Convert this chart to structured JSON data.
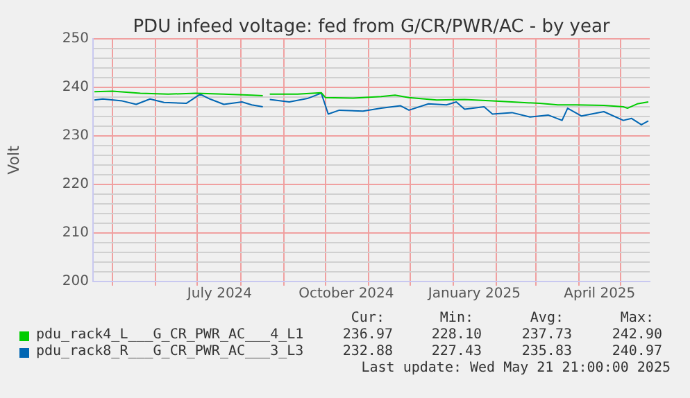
{
  "chart_data": {
    "type": "line",
    "title": "PDU infeed voltage: fed from G/CR/PWR/AC - by year",
    "ylabel": "Volt",
    "xlim": [
      "2024-04-17",
      "2025-05-22"
    ],
    "ylim": [
      200,
      250
    ],
    "xticks": [
      {
        "value": "2024-05-01",
        "label": null
      },
      {
        "value": "2024-06-01",
        "label": null
      },
      {
        "value": "2024-07-01",
        "label": null
      },
      {
        "value": "2024-07-17",
        "label": "July 2024"
      },
      {
        "value": "2024-08-01",
        "label": null
      },
      {
        "value": "2024-09-01",
        "label": null
      },
      {
        "value": "2024-10-01",
        "label": null
      },
      {
        "value": "2024-10-16",
        "label": "October 2024"
      },
      {
        "value": "2024-11-01",
        "label": null
      },
      {
        "value": "2024-12-01",
        "label": null
      },
      {
        "value": "2025-01-01",
        "label": null
      },
      {
        "value": "2025-01-16",
        "label": "January 2025"
      },
      {
        "value": "2025-02-01",
        "label": null
      },
      {
        "value": "2025-03-01",
        "label": null
      },
      {
        "value": "2025-04-01",
        "label": null
      },
      {
        "value": "2025-04-16",
        "label": "April 2025"
      },
      {
        "value": "2025-05-01",
        "label": null
      }
    ],
    "yticks": [
      200,
      {
        "value": 202,
        "label": null
      },
      {
        "value": 204,
        "label": null
      },
      {
        "value": 206,
        "label": null
      },
      {
        "value": 208,
        "label": null
      },
      210,
      {
        "value": 212,
        "label": null
      },
      {
        "value": 214,
        "label": null
      },
      {
        "value": 216,
        "label": null
      },
      {
        "value": 218,
        "label": null
      },
      220,
      {
        "value": 222,
        "label": null
      },
      {
        "value": 224,
        "label": null
      },
      {
        "value": 226,
        "label": null
      },
      {
        "value": 228,
        "label": null
      },
      230,
      {
        "value": 232,
        "label": null
      },
      {
        "value": 234,
        "label": null
      },
      {
        "value": 236,
        "label": null
      },
      {
        "value": 238,
        "label": null
      },
      240,
      {
        "value": 242,
        "label": null
      },
      {
        "value": 244,
        "label": null
      },
      {
        "value": 246,
        "label": null
      },
      {
        "value": 248,
        "label": null
      },
      250
    ],
    "grid": true,
    "legend": "bottom",
    "marker": "none",
    "line_style": "solid",
    "series": [
      {
        "name": "pdu_rack4_L___G_CR_PWR_AC___4_L1",
        "color": "#00cc00",
        "x": [
          "2024-04-18",
          "2024-05-01",
          "2024-05-21",
          "2024-06-10",
          "2024-06-30",
          "2024-07-20",
          "2024-08-09",
          "2024-08-17",
          "2024-08-19",
          "2024-08-22",
          "2024-09-11",
          "2024-09-28",
          "2024-10-01",
          "2024-10-21",
          "2024-11-10",
          "2024-11-20",
          "2024-11-30",
          "2024-12-20",
          "2025-01-09",
          "2025-01-29",
          "2025-02-12",
          "2025-03-04",
          "2025-03-17",
          "2025-03-30",
          "2025-04-19",
          "2025-05-03",
          "2025-05-06",
          "2025-05-13",
          "2025-05-21"
        ],
        "values": [
          239.1,
          239.2,
          238.8,
          238.6,
          238.8,
          238.6,
          238.4,
          238.3,
          null,
          238.6,
          238.6,
          238.9,
          237.9,
          237.8,
          238.1,
          238.4,
          237.9,
          237.4,
          237.5,
          237.2,
          237.0,
          236.7,
          236.4,
          236.4,
          236.3,
          236.0,
          235.7,
          236.6,
          237.0
        ]
      },
      {
        "name": "pdu_rack8_R___G_CR_PWR_AC___3_L3",
        "color": "#0066b3",
        "x": [
          "2024-04-18",
          "2024-04-24",
          "2024-05-08",
          "2024-05-18",
          "2024-05-28",
          "2024-06-07",
          "2024-06-23",
          "2024-07-03",
          "2024-07-10",
          "2024-07-20",
          "2024-08-02",
          "2024-08-09",
          "2024-08-17",
          "2024-08-19",
          "2024-08-22",
          "2024-09-05",
          "2024-09-18",
          "2024-09-28",
          "2024-10-03",
          "2024-10-11",
          "2024-10-28",
          "2024-11-10",
          "2024-11-24",
          "2024-11-30",
          "2024-12-14",
          "2024-12-27",
          "2025-01-03",
          "2025-01-09",
          "2025-01-23",
          "2025-01-29",
          "2025-02-12",
          "2025-02-25",
          "2025-03-10",
          "2025-03-20",
          "2025-03-24",
          "2025-04-03",
          "2025-04-19",
          "2025-05-03",
          "2025-05-09",
          "2025-05-16",
          "2025-05-21"
        ],
        "values": [
          237.4,
          237.6,
          237.2,
          236.5,
          237.6,
          236.9,
          236.7,
          238.6,
          237.6,
          236.5,
          237.0,
          236.4,
          236.0,
          null,
          237.5,
          237.0,
          237.7,
          238.8,
          234.5,
          235.3,
          235.1,
          235.7,
          236.2,
          235.3,
          236.6,
          236.4,
          237.0,
          235.5,
          236.0,
          234.5,
          234.8,
          233.9,
          234.3,
          233.2,
          235.7,
          234.1,
          235.0,
          233.2,
          233.6,
          232.3,
          233.1
        ]
      }
    ],
    "annotations": [
      "Cur:",
      "Min:",
      "Avg:",
      "Max:",
      "236.97",
      "228.10",
      "237.73",
      "242.90",
      "232.88",
      "227.43",
      "235.83",
      "240.97",
      "Last update: Wed May 21 21:00:00 2025"
    ]
  }
}
